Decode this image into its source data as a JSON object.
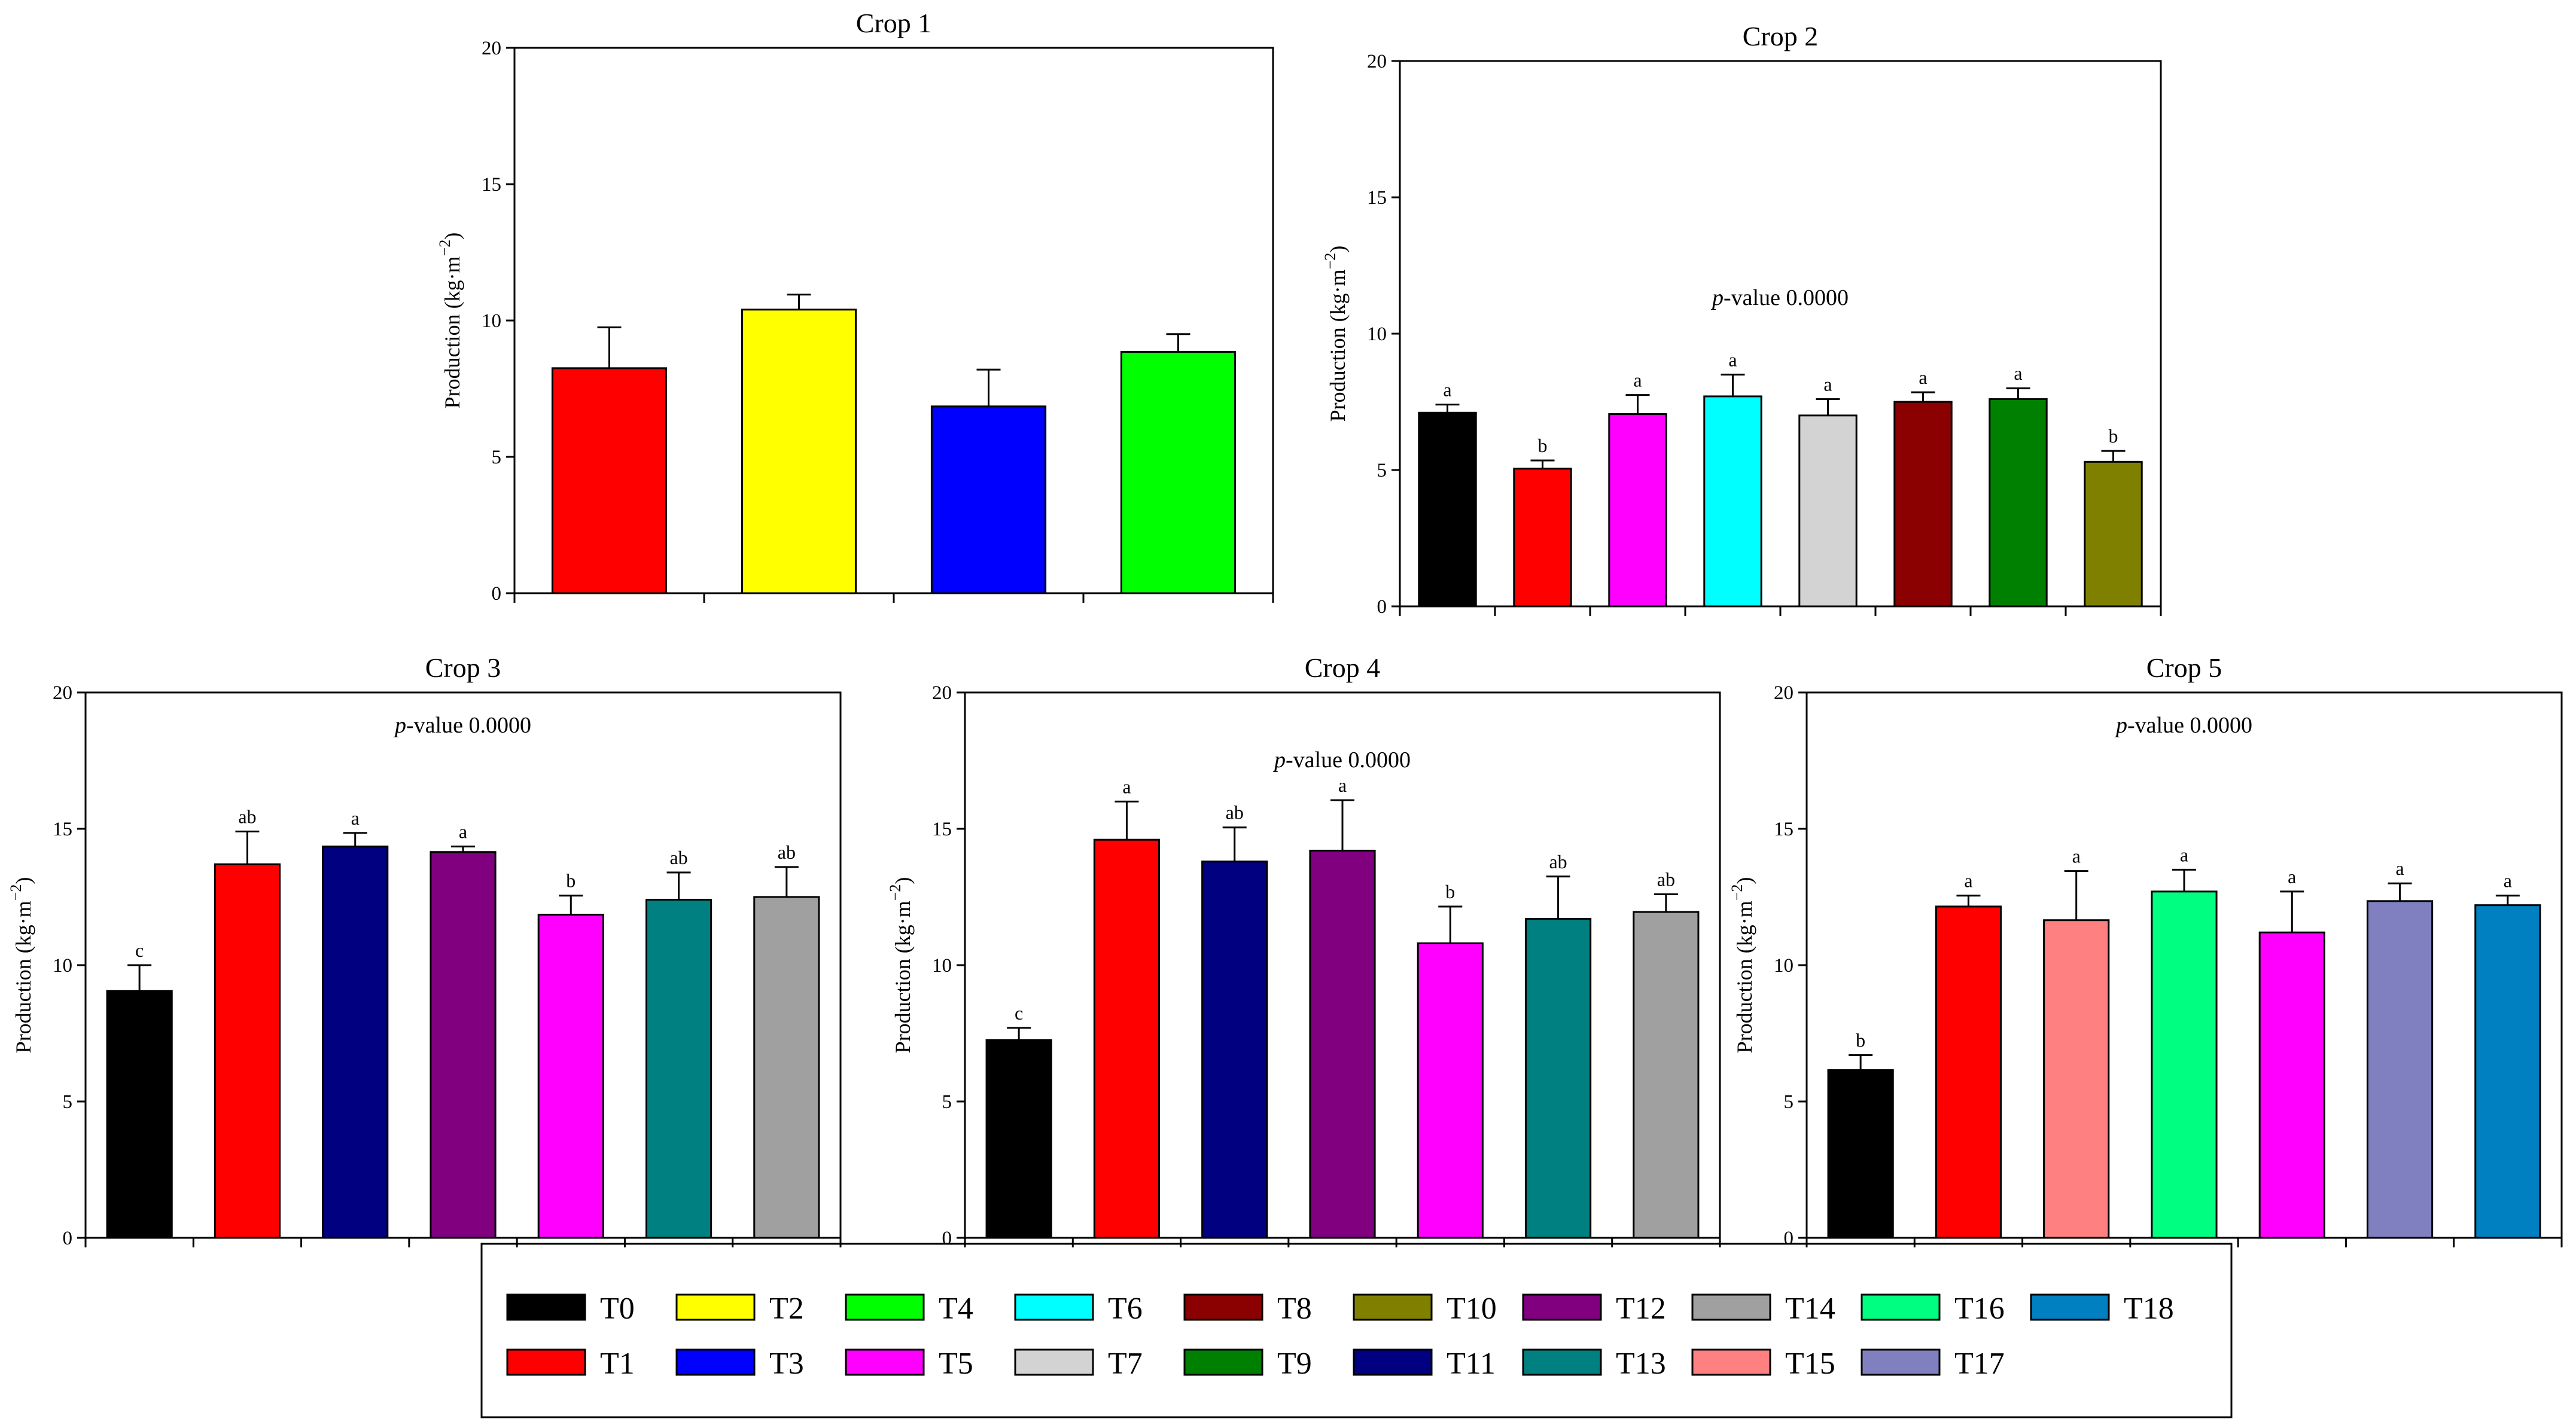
{
  "chart_data": [
    {
      "type": "bar",
      "title": "Crop 1",
      "ylabel": "Production (kg·m",
      "ylabel_sup": "−2",
      "ylabel_tail": ")",
      "ylim": [
        0,
        20
      ],
      "yticks": [
        "0",
        "5",
        "10",
        "15",
        "20"
      ],
      "p_value_prefix": "",
      "p_value_text": "",
      "categories": [
        "T1",
        "T2",
        "T3",
        "T4"
      ],
      "values": [
        8.25,
        10.4,
        6.85,
        8.85
      ],
      "errors": [
        1.5,
        0.55,
        1.35,
        0.65
      ],
      "labels": [
        "",
        "",
        "",
        ""
      ],
      "colors": [
        "#ff0000",
        "#ffff00",
        "#0000ff",
        "#00ff00"
      ]
    },
    {
      "type": "bar",
      "title": "Crop 2",
      "ylabel": "Production (kg·m",
      "ylabel_sup": "−2",
      "ylabel_tail": ")",
      "ylim": [
        0,
        20
      ],
      "yticks": [
        "0",
        "5",
        "10",
        "15",
        "20"
      ],
      "p_value_prefix": "p",
      "p_value_text": "-value 0.0000",
      "categories": [
        "T0",
        "T1",
        "T5",
        "T6",
        "T7",
        "T8",
        "T9",
        "T10"
      ],
      "values": [
        7.1,
        5.05,
        7.05,
        7.7,
        7.0,
        7.5,
        7.6,
        5.3
      ],
      "errors": [
        0.3,
        0.3,
        0.7,
        0.8,
        0.6,
        0.35,
        0.4,
        0.4
      ],
      "labels": [
        "a",
        "b",
        "a",
        "a",
        "a",
        "a",
        "a",
        "b"
      ],
      "colors": [
        "#000000",
        "#ff0000",
        "#ff00ff",
        "#00ffff",
        "#d3d3d3",
        "#8b0000",
        "#008000",
        "#808000"
      ]
    },
    {
      "type": "bar",
      "title": "Crop 3",
      "ylabel": "Production (kg·m",
      "ylabel_sup": "−2",
      "ylabel_tail": ")",
      "ylim": [
        0,
        20
      ],
      "yticks": [
        "0",
        "5",
        "10",
        "15",
        "20"
      ],
      "p_value_prefix": "p",
      "p_value_text": "-value 0.0000",
      "categories": [
        "T0",
        "T1",
        "T11",
        "T12",
        "T5",
        "T13",
        "T14"
      ],
      "values": [
        9.05,
        13.7,
        14.35,
        14.15,
        11.85,
        12.4,
        12.5
      ],
      "errors": [
        0.95,
        1.2,
        0.5,
        0.2,
        0.7,
        1.0,
        1.1
      ],
      "labels": [
        "c",
        "ab",
        "a",
        "a",
        "b",
        "ab",
        "ab"
      ],
      "colors": [
        "#000000",
        "#ff0000",
        "#000080",
        "#800080",
        "#ff00ff",
        "#008080",
        "#a0a0a0"
      ]
    },
    {
      "type": "bar",
      "title": "Crop 4",
      "ylabel": "Production (kg·m",
      "ylabel_sup": "−2",
      "ylabel_tail": ")",
      "ylim": [
        0,
        20
      ],
      "yticks": [
        "0",
        "5",
        "10",
        "15",
        "20"
      ],
      "p_value_prefix": "p",
      "p_value_text": "-value 0.0000",
      "categories": [
        "T0",
        "T1",
        "T11",
        "T12",
        "T5",
        "T13",
        "T14"
      ],
      "values": [
        7.25,
        14.6,
        13.8,
        14.2,
        10.8,
        11.7,
        11.95
      ],
      "errors": [
        0.45,
        1.4,
        1.25,
        1.85,
        1.35,
        1.55,
        0.65
      ],
      "labels": [
        "c",
        "a",
        "ab",
        "a",
        "b",
        "ab",
        "ab"
      ],
      "colors": [
        "#000000",
        "#ff0000",
        "#000080",
        "#800080",
        "#ff00ff",
        "#008080",
        "#a0a0a0"
      ]
    },
    {
      "type": "bar",
      "title": "Crop 5",
      "ylabel": "Production (kg·m",
      "ylabel_sup": "−2",
      "ylabel_tail": ")",
      "ylim": [
        0,
        20
      ],
      "yticks": [
        "0",
        "5",
        "10",
        "15",
        "20"
      ],
      "p_value_prefix": "p",
      "p_value_text": "-value 0.0000",
      "categories": [
        "T0",
        "T1",
        "T15",
        "T16",
        "T5",
        "T17",
        "T18"
      ],
      "values": [
        6.15,
        12.15,
        11.65,
        12.7,
        11.2,
        12.35,
        12.2
      ],
      "errors": [
        0.55,
        0.4,
        1.8,
        0.8,
        1.5,
        0.65,
        0.35
      ],
      "labels": [
        "b",
        "a",
        "a",
        "a",
        "a",
        "a",
        "a"
      ],
      "colors": [
        "#000000",
        "#ff0000",
        "#ff8080",
        "#00ff80",
        "#ff00ff",
        "#8080c0",
        "#0080c0"
      ]
    }
  ],
  "legend": {
    "items": [
      {
        "label": "T0",
        "color": "#000000"
      },
      {
        "label": "T1",
        "color": "#ff0000"
      },
      {
        "label": "T2",
        "color": "#ffff00"
      },
      {
        "label": "T3",
        "color": "#0000ff"
      },
      {
        "label": "T4",
        "color": "#00ff00"
      },
      {
        "label": "T5",
        "color": "#ff00ff"
      },
      {
        "label": "T6",
        "color": "#00ffff"
      },
      {
        "label": "T7",
        "color": "#d3d3d3"
      },
      {
        "label": "T8",
        "color": "#8b0000"
      },
      {
        "label": "T9",
        "color": "#008000"
      },
      {
        "label": "T10",
        "color": "#808000"
      },
      {
        "label": "T11",
        "color": "#000080"
      },
      {
        "label": "T12",
        "color": "#800080"
      },
      {
        "label": "T13",
        "color": "#008080"
      },
      {
        "label": "T14",
        "color": "#a0a0a0"
      },
      {
        "label": "T15",
        "color": "#ff8080"
      },
      {
        "label": "T16",
        "color": "#00ff80"
      },
      {
        "label": "T17",
        "color": "#8080c0"
      },
      {
        "label": "T18",
        "color": "#0080c0"
      }
    ]
  }
}
